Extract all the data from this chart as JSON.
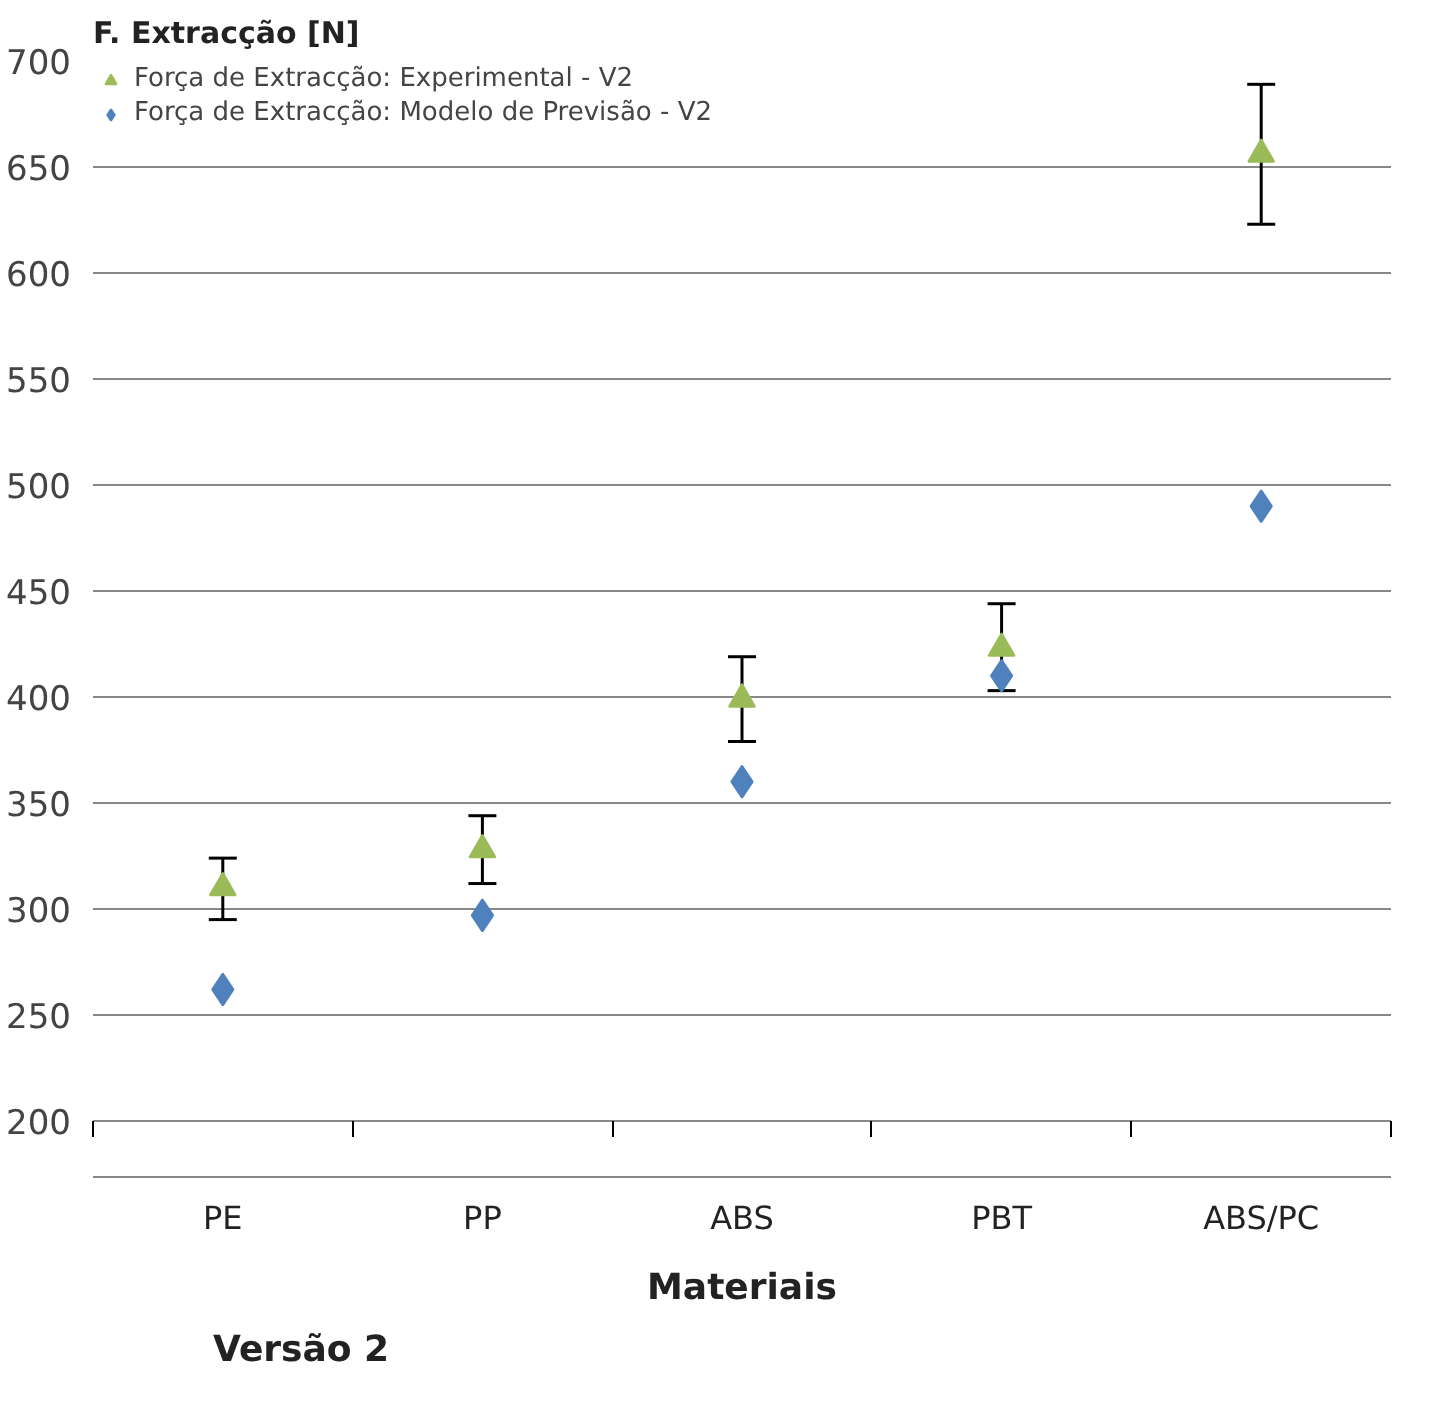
{
  "chart_data": {
    "type": "scatter",
    "ylabel": "F. Extracção [N]",
    "xlabel": "Materiais",
    "annotations": [
      "Versão 2"
    ],
    "categories": [
      "PE",
      "PP",
      "ABS",
      "PBT",
      "ABS/PC"
    ],
    "series": [
      {
        "name": "Força de Extracção: Experimental - V2",
        "color": "#9bbb59",
        "marker": "triangle",
        "values": [
          310,
          328,
          399,
          423,
          656
        ],
        "errors": [
          [
            295,
            324
          ],
          [
            312,
            344
          ],
          [
            379,
            419
          ],
          [
            403,
            444
          ],
          [
            623,
            689
          ]
        ]
      },
      {
        "name": "Força de Extracção: Modelo de Previsão - V2",
        "color": "#4f81bd",
        "marker": "diamond",
        "values": [
          262,
          297,
          360,
          410,
          490
        ]
      }
    ],
    "ylim": [
      200,
      700
    ],
    "yticks": [
      200,
      250,
      300,
      350,
      400,
      450,
      500,
      550,
      600,
      650,
      700
    ],
    "grid": "y",
    "legend": "top left"
  }
}
